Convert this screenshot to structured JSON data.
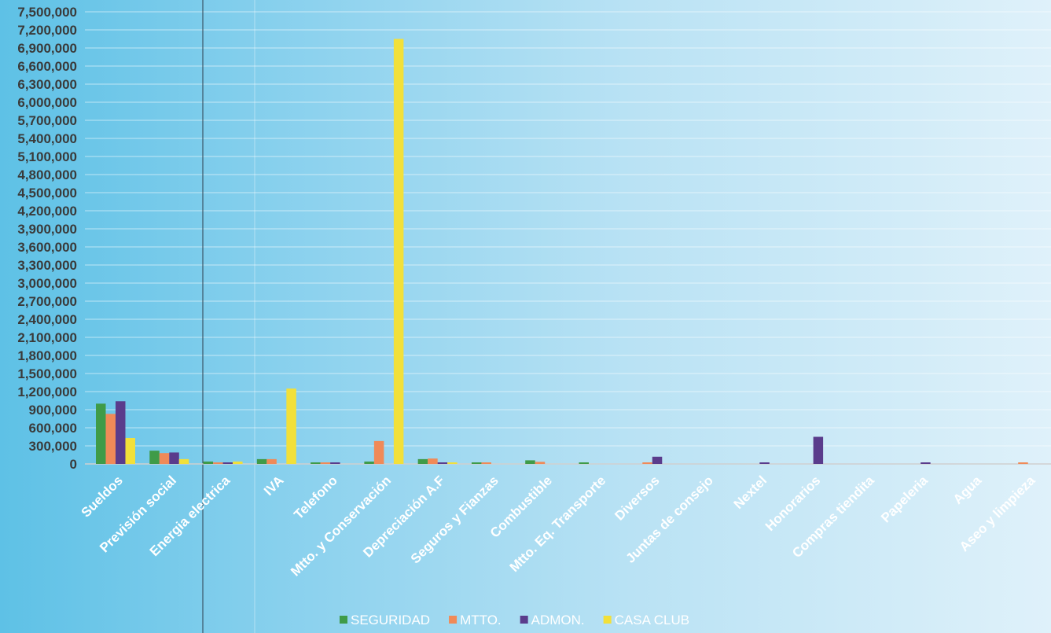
{
  "chart_data": {
    "type": "bar",
    "categories": [
      "Sueldos",
      "Previsión social",
      "Energia electrica",
      "IVA",
      "Telefono",
      "Mtto. y Conservación",
      "Depreciación A.F",
      "Seguros y Fianzas",
      "Combustible",
      "Mtto. Eq. Transporte",
      "Diversos",
      "Juntas de consejo",
      "Nextel",
      "Honorarios",
      "Compras tiendita",
      "Papeleria",
      "Agua",
      "Aseo y limpieza"
    ],
    "series": [
      {
        "name": "SEGURIDAD",
        "color": "#3f9b48",
        "values": [
          1000000,
          220000,
          40000,
          80000,
          5000,
          40000,
          80000,
          5000,
          60000,
          10000,
          0,
          0,
          0,
          0,
          0,
          0,
          0,
          0
        ]
      },
      {
        "name": "MTTO.",
        "color": "#f08a58",
        "values": [
          830000,
          180000,
          20000,
          80000,
          3000,
          380000,
          90000,
          5000,
          35000,
          0,
          5000,
          0,
          0,
          0,
          0,
          0,
          0,
          10000
        ]
      },
      {
        "name": "ADMON.",
        "color": "#5a3c8c",
        "values": [
          1040000,
          190000,
          10000,
          0,
          5000,
          0,
          20000,
          0,
          0,
          0,
          120000,
          0,
          5000,
          450000,
          0,
          10000,
          0,
          0
        ]
      },
      {
        "name": "CASA CLUB",
        "color": "#f2e03a",
        "values": [
          430000,
          80000,
          40000,
          1250000,
          0,
          7050000,
          20000,
          0,
          0,
          0,
          0,
          0,
          0,
          0,
          0,
          0,
          0,
          0
        ]
      }
    ],
    "yticks": [
      "0",
      "300,000",
      "600,000",
      "900,000",
      "1,200,000",
      "1,500,000",
      "1,800,000",
      "2,100,000",
      "2,400,000",
      "2,700,000",
      "3,000,000",
      "3,300,000",
      "3,600,000",
      "3,900,000",
      "4,200,000",
      "4,500,000",
      "4,800,000",
      "5,100,000",
      "5,400,000",
      "5,700,000",
      "6,000,000",
      "6,300,000",
      "6,600,000",
      "6,900,000",
      "7,200,000",
      "7,500,000"
    ],
    "ylim": [
      0,
      7500000
    ],
    "ystep": 300000,
    "grid": true,
    "legend_position": "bottom"
  }
}
